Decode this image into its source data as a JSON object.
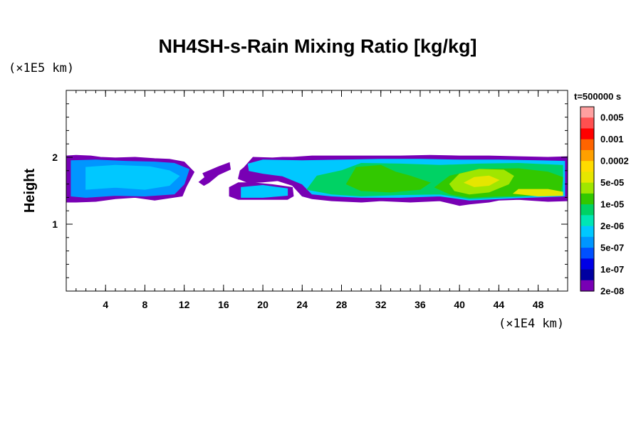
{
  "chart_data": {
    "type": "heatmap",
    "title": "NH4SH-s-Rain Mixing Ratio [kg/kg]",
    "ylabel": "Height",
    "xlabel": "",
    "x_unit": "(×1E4 km)",
    "y_unit": "(×1E5 km)",
    "time_label": "t=500000 s",
    "xlim": [
      0,
      51
    ],
    "ylim": [
      0,
      3
    ],
    "x_ticks": [
      "4",
      "8",
      "12",
      "16",
      "20",
      "24",
      "28",
      "32",
      "36",
      "40",
      "44",
      "48"
    ],
    "x_tick_values": [
      4,
      8,
      12,
      16,
      20,
      24,
      28,
      32,
      36,
      40,
      44,
      48
    ],
    "y_ticks": [
      "1",
      "2"
    ],
    "y_tick_values": [
      1,
      2
    ],
    "x_minor_step": 1,
    "y_minor_step": 0.2,
    "colorbar": {
      "labels": [
        "0.005",
        "0.001",
        "0.0002",
        "5e-05",
        "1e-05",
        "2e-06",
        "5e-07",
        "1e-07",
        "2e-08"
      ],
      "colors": [
        "#ffa0a0",
        "#ff5050",
        "#ff0000",
        "#ff6400",
        "#ffa000",
        "#ffdc00",
        "#e6e600",
        "#a0e600",
        "#32c800",
        "#00d264",
        "#00e6b4",
        "#00c8ff",
        "#0096ff",
        "#0050ff",
        "#0000e6",
        "#0000a0",
        "#7800b4"
      ]
    },
    "regions": [
      {
        "level": 0,
        "points": [
          [
            0,
            1.33
          ],
          [
            0,
            2.02
          ],
          [
            1,
            2.03
          ],
          [
            2.5,
            2.02
          ],
          [
            3.5,
            2.0
          ],
          [
            5,
            1.99
          ],
          [
            7,
            2.0
          ],
          [
            9,
            1.98
          ],
          [
            10.5,
            1.97
          ],
          [
            12,
            1.93
          ],
          [
            13,
            1.78
          ],
          [
            12.2,
            1.56
          ],
          [
            11.8,
            1.42
          ],
          [
            9,
            1.36
          ],
          [
            7,
            1.4
          ],
          [
            5,
            1.38
          ],
          [
            3,
            1.34
          ],
          [
            1,
            1.33
          ]
        ]
      },
      {
        "level": 0,
        "points": [
          [
            13.9,
            1.76
          ],
          [
            15.5,
            1.86
          ],
          [
            16.6,
            1.92
          ],
          [
            16.7,
            1.82
          ],
          [
            15.5,
            1.74
          ],
          [
            14.5,
            1.62
          ],
          [
            14.0,
            1.58
          ],
          [
            13.5,
            1.63
          ],
          [
            14.1,
            1.7
          ]
        ]
      },
      {
        "level": 0,
        "points": [
          [
            18.1,
            1.85
          ],
          [
            19,
            2.0
          ],
          [
            21,
            1.99
          ],
          [
            22,
            2.0
          ],
          [
            23,
            2.0
          ],
          [
            25,
            2.02
          ],
          [
            28,
            2.02
          ],
          [
            31,
            2.02
          ],
          [
            34,
            2.02
          ],
          [
            37,
            2.03
          ],
          [
            40,
            2.02
          ],
          [
            43,
            2.02
          ],
          [
            46,
            2.01
          ],
          [
            49,
            2.0
          ],
          [
            51,
            2.01
          ],
          [
            51,
            1.35
          ],
          [
            49,
            1.34
          ],
          [
            46,
            1.37
          ],
          [
            44,
            1.36
          ],
          [
            43,
            1.33
          ],
          [
            41,
            1.3
          ],
          [
            40,
            1.28
          ],
          [
            38,
            1.35
          ],
          [
            35,
            1.33
          ],
          [
            32,
            1.35
          ],
          [
            30,
            1.33
          ],
          [
            27,
            1.35
          ],
          [
            25,
            1.38
          ],
          [
            24,
            1.42
          ],
          [
            23,
            1.58
          ],
          [
            21.5,
            1.65
          ],
          [
            20,
            1.63
          ],
          [
            18.5,
            1.62
          ],
          [
            17.5,
            1.68
          ],
          [
            17.7,
            1.8
          ]
        ]
      },
      {
        "level": 0,
        "points": [
          [
            16.6,
            1.55
          ],
          [
            17.5,
            1.62
          ],
          [
            19,
            1.62
          ],
          [
            21,
            1.59
          ],
          [
            23,
            1.55
          ],
          [
            23.1,
            1.42
          ],
          [
            22.5,
            1.37
          ],
          [
            20,
            1.37
          ],
          [
            17.5,
            1.37
          ],
          [
            16.6,
            1.42
          ]
        ]
      },
      {
        "level": 4,
        "points": [
          [
            0.5,
            1.42
          ],
          [
            0.5,
            1.95
          ],
          [
            3,
            1.96
          ],
          [
            6,
            1.94
          ],
          [
            9,
            1.93
          ],
          [
            11,
            1.91
          ],
          [
            12.5,
            1.82
          ],
          [
            12,
            1.6
          ],
          [
            11,
            1.45
          ],
          [
            8,
            1.42
          ],
          [
            5,
            1.43
          ],
          [
            2,
            1.4
          ]
        ]
      },
      {
        "level": 5,
        "points": [
          [
            2,
            1.52
          ],
          [
            2,
            1.85
          ],
          [
            5,
            1.88
          ],
          [
            8.5,
            1.86
          ],
          [
            10.5,
            1.8
          ],
          [
            11.5,
            1.72
          ],
          [
            10.5,
            1.58
          ],
          [
            8,
            1.52
          ],
          [
            5,
            1.55
          ]
        ]
      },
      {
        "level": 5,
        "points": [
          [
            18.5,
            1.9
          ],
          [
            20,
            1.96
          ],
          [
            24,
            1.95
          ],
          [
            28,
            1.96
          ],
          [
            32,
            1.97
          ],
          [
            36,
            1.97
          ],
          [
            40,
            1.96
          ],
          [
            44,
            1.96
          ],
          [
            48,
            1.95
          ],
          [
            50.7,
            1.94
          ],
          [
            50.7,
            1.42
          ],
          [
            47,
            1.4
          ],
          [
            44,
            1.38
          ],
          [
            41,
            1.36
          ],
          [
            38,
            1.42
          ],
          [
            34,
            1.4
          ],
          [
            30,
            1.4
          ],
          [
            27,
            1.42
          ],
          [
            25,
            1.45
          ],
          [
            24,
            1.6
          ],
          [
            22,
            1.72
          ],
          [
            20,
            1.76
          ],
          [
            18.6,
            1.8
          ]
        ]
      },
      {
        "level": 5,
        "points": [
          [
            17.8,
            1.4
          ],
          [
            17.8,
            1.55
          ],
          [
            20,
            1.58
          ],
          [
            22.5,
            1.53
          ],
          [
            22.5,
            1.43
          ],
          [
            20,
            1.4
          ]
        ]
      },
      {
        "level": 7,
        "points": [
          [
            24.5,
            1.52
          ],
          [
            25.5,
            1.72
          ],
          [
            28,
            1.8
          ],
          [
            30,
            1.91
          ],
          [
            34,
            1.9
          ],
          [
            38,
            1.88
          ],
          [
            42,
            1.9
          ],
          [
            46,
            1.91
          ],
          [
            50.5,
            1.88
          ],
          [
            50.5,
            1.45
          ],
          [
            47,
            1.42
          ],
          [
            44,
            1.4
          ],
          [
            41,
            1.38
          ],
          [
            38,
            1.45
          ],
          [
            34,
            1.44
          ],
          [
            30,
            1.42
          ],
          [
            27,
            1.45
          ]
        ]
      },
      {
        "level": 8,
        "points": [
          [
            28.5,
            1.6
          ],
          [
            29.5,
            1.85
          ],
          [
            32,
            1.88
          ],
          [
            33.5,
            1.78
          ],
          [
            35,
            1.72
          ],
          [
            37,
            1.62
          ],
          [
            36,
            1.52
          ],
          [
            33,
            1.48
          ],
          [
            30,
            1.5
          ]
        ]
      },
      {
        "level": 8,
        "points": [
          [
            37.5,
            1.55
          ],
          [
            39,
            1.72
          ],
          [
            42,
            1.82
          ],
          [
            46,
            1.83
          ],
          [
            49,
            1.78
          ],
          [
            50.5,
            1.7
          ],
          [
            50.3,
            1.48
          ],
          [
            47,
            1.43
          ],
          [
            44,
            1.42
          ],
          [
            41,
            1.4
          ],
          [
            39,
            1.45
          ]
        ]
      },
      {
        "level": 9,
        "points": [
          [
            39,
            1.6
          ],
          [
            40,
            1.75
          ],
          [
            42,
            1.82
          ],
          [
            44.5,
            1.81
          ],
          [
            45.5,
            1.72
          ],
          [
            45,
            1.6
          ],
          [
            43,
            1.48
          ],
          [
            41,
            1.45
          ],
          [
            39.5,
            1.5
          ]
        ]
      },
      {
        "level": 10,
        "points": [
          [
            40.5,
            1.62
          ],
          [
            41.5,
            1.7
          ],
          [
            43,
            1.72
          ],
          [
            44,
            1.66
          ],
          [
            43,
            1.58
          ],
          [
            41.5,
            1.56
          ]
        ]
      },
      {
        "level": 10,
        "points": [
          [
            45.5,
            1.46
          ],
          [
            46,
            1.52
          ],
          [
            49,
            1.52
          ],
          [
            50.5,
            1.48
          ],
          [
            50.5,
            1.43
          ],
          [
            48,
            1.42
          ]
        ]
      }
    ]
  }
}
